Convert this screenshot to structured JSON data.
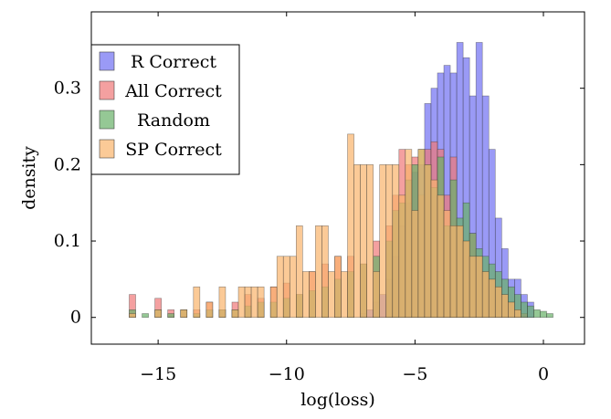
{
  "chart_data": {
    "type": "bar",
    "xlabel": "log(loss)",
    "ylabel": "density",
    "xlim": [
      -17.6,
      1.6
    ],
    "ylim": [
      -0.035,
      0.4
    ],
    "xticks": [
      -15,
      -10,
      -5,
      0
    ],
    "xtick_labels": [
      "−15",
      "−10",
      "−5",
      "0"
    ],
    "yticks": [
      0,
      0.1,
      0.2,
      0.3
    ],
    "ytick_labels": [
      "0",
      "0.1",
      "0.2",
      "0.3"
    ],
    "bin_width": 0.25,
    "grid": false,
    "legend_position": "top-left",
    "series": [
      {
        "name": "R Correct",
        "color": "#6f6ff2",
        "opacity": 0.7,
        "x": [
          -7,
          -6.75,
          -6.5,
          -6.25,
          -6,
          -5.75,
          -5.5,
          -5.25,
          -5,
          -4.75,
          -4.5,
          -4.25,
          -4,
          -3.75,
          -3.5,
          -3.25,
          -3,
          -2.75,
          -2.5,
          -2.25,
          -2,
          -1.75,
          -1.5,
          -1.25,
          -1,
          -0.75,
          -0.5
        ],
        "values": [
          0.005,
          0.01,
          0.02,
          0.03,
          0.05,
          0.08,
          0.12,
          0.15,
          0.19,
          0.2,
          0.28,
          0.3,
          0.32,
          0.33,
          0.32,
          0.36,
          0.34,
          0.29,
          0.36,
          0.29,
          0.22,
          0.13,
          0.09,
          0.05,
          0.05,
          0.03,
          0.02
        ]
      },
      {
        "name": "All Correct",
        "color": "#f07878",
        "opacity": 0.7,
        "x": [
          -16,
          -15,
          -14.5,
          -14,
          -13.5,
          -13,
          -12.5,
          -12,
          -11.5,
          -11,
          -10.5,
          -10,
          -9.5,
          -9,
          -8.5,
          -8,
          -7.5,
          -7,
          -6.5,
          -6,
          -5.75,
          -5.5,
          -5.25,
          -5,
          -4.75,
          -4.5,
          -4.25,
          -4,
          -3.75,
          -3.5,
          -3.25,
          -3,
          -2.75,
          -2.5,
          -2.25,
          -2,
          -1.75,
          -1.5,
          -1.25,
          -1,
          -0.75
        ],
        "values": [
          0.03,
          0.025,
          0.01,
          0.01,
          0.01,
          0.02,
          0.01,
          0.02,
          0.03,
          0.025,
          0.04,
          0.045,
          0.03,
          0.06,
          0.07,
          0.08,
          0.08,
          0.07,
          0.1,
          0.12,
          0.16,
          0.22,
          0.2,
          0.21,
          0.16,
          0.22,
          0.23,
          0.22,
          0.16,
          0.21,
          0.12,
          0.1,
          0.11,
          0.08,
          0.06,
          0.05,
          0.04,
          0.03,
          0.02,
          0.01,
          0.005
        ]
      },
      {
        "name": "Random",
        "color": "#68b068",
        "opacity": 0.7,
        "x": [
          -16,
          -15.5,
          -15,
          -14.5,
          -14,
          -13.5,
          -13,
          -12.5,
          -12,
          -11.5,
          -11,
          -10.5,
          -10,
          -9.5,
          -9,
          -8.5,
          -8,
          -7.5,
          -7,
          -6.5,
          -6,
          -5.75,
          -5.5,
          -5.25,
          -5,
          -4.75,
          -4.5,
          -4.25,
          -4,
          -3.75,
          -3.5,
          -3.25,
          -3,
          -2.75,
          -2.5,
          -2.25,
          -2,
          -1.75,
          -1.5,
          -1.25,
          -1,
          -0.75,
          -0.5,
          -0.25,
          0,
          0.25
        ],
        "values": [
          0.01,
          0.005,
          0.01,
          0.005,
          0.01,
          0.005,
          0.01,
          0.01,
          0.01,
          0.015,
          0.02,
          0.02,
          0.025,
          0.03,
          0.035,
          0.04,
          0.05,
          0.06,
          0.07,
          0.08,
          0.1,
          0.14,
          0.15,
          0.18,
          0.2,
          0.22,
          0.2,
          0.17,
          0.21,
          0.12,
          0.18,
          0.13,
          0.15,
          0.11,
          0.09,
          0.08,
          0.07,
          0.06,
          0.05,
          0.04,
          0.03,
          0.02,
          0.015,
          0.01,
          0.008,
          0.005
        ]
      },
      {
        "name": "SP Correct",
        "color": "#f9b36b",
        "opacity": 0.7,
        "x": [
          -16,
          -15,
          -14,
          -13.5,
          -13,
          -12.5,
          -12,
          -11.75,
          -11.5,
          -11.25,
          -11,
          -10.5,
          -10.25,
          -10,
          -9.75,
          -9.5,
          -9.25,
          -9,
          -8.75,
          -8.5,
          -8.25,
          -8,
          -7.75,
          -7.5,
          -7.25,
          -7,
          -6.75,
          -6.5,
          -6.25,
          -6,
          -5.75,
          -5.5,
          -5.25,
          -5,
          -4.75,
          -4.5,
          -4.25,
          -4,
          -3.75,
          -3.5,
          -3.25,
          -3,
          -2.75,
          -2.5,
          -2.25,
          -2,
          -1.75,
          -1.5,
          -1.25,
          -1
        ],
        "values": [
          0.005,
          0.01,
          0.01,
          0.04,
          0.02,
          0.04,
          0.01,
          0.04,
          0.04,
          0.04,
          0.04,
          0.04,
          0.08,
          0.08,
          0.08,
          0.12,
          0.06,
          0.06,
          0.12,
          0.12,
          0.06,
          0.08,
          0.06,
          0.24,
          0.2,
          0.2,
          0.2,
          0.06,
          0.2,
          0.2,
          0.2,
          0.16,
          0.22,
          0.14,
          0.22,
          0.2,
          0.18,
          0.16,
          0.14,
          0.12,
          0.12,
          0.1,
          0.08,
          0.08,
          0.06,
          0.05,
          0.04,
          0.03,
          0.02,
          0.01
        ]
      }
    ]
  }
}
